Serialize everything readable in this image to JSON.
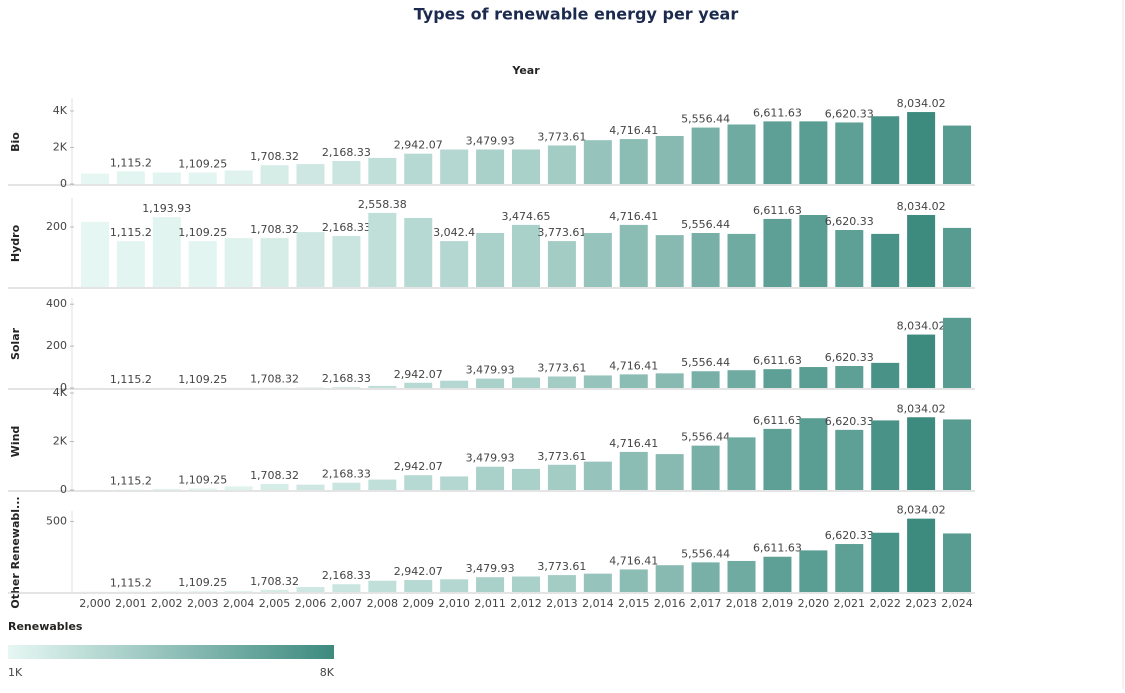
{
  "chart_data": {
    "type": "bar",
    "title": "Types of renewable energy per year",
    "x_label": "Year",
    "categories": [
      "2,000",
      "2,001",
      "2,002",
      "2,003",
      "2,004",
      "2,005",
      "2,006",
      "2,007",
      "2,008",
      "2,009",
      "2,010",
      "2,011",
      "2,012",
      "2,013",
      "2,014",
      "2,015",
      "2,016",
      "2,017",
      "2,018",
      "2,019",
      "2,020",
      "2,021",
      "2,022",
      "2,023",
      "2,024"
    ],
    "renewables": {
      "name": "Renewables",
      "values": [
        1000,
        1115.2,
        1193.93,
        1109.25,
        1300,
        1708.32,
        2000,
        2168.33,
        2558.38,
        2942.07,
        3042.4,
        3479.93,
        3474.65,
        3773.61,
        4300,
        4716.41,
        4900,
        5556.44,
        5900,
        6611.63,
        6800,
        6620.33,
        7500,
        8034.02,
        6900
      ]
    },
    "colorscale": {
      "min": {
        "value": 1000,
        "label": "1K"
      },
      "max": {
        "value": 8000,
        "label": "8K"
      },
      "colors": [
        "#e6f7f3",
        "#3d8a7f"
      ]
    },
    "series": [
      {
        "name": "Bio",
        "ylim": [
          0,
          4600
        ],
        "yticks": [
          0,
          {
            "value": 2000,
            "label": "2K"
          },
          {
            "value": 4000,
            "label": "4K"
          }
        ],
        "values": [
          570,
          690,
          630,
          630,
          740,
          1030,
          1090,
          1260,
          1430,
          1660,
          1890,
          1890,
          1890,
          2110,
          2400,
          2460,
          2630,
          3090,
          3260,
          3430,
          3430,
          3370,
          3710,
          3940,
          3200
        ],
        "total_labels": [
          null,
          "1,115.2",
          null,
          "1,109.25",
          null,
          "1,708.32",
          null,
          "2,168.33",
          null,
          "2,942.07",
          null,
          "3,479.93",
          null,
          "3,773.61",
          null,
          "4,716.41",
          null,
          "5,556.44",
          null,
          "6,611.63",
          null,
          "6,620.33",
          null,
          "8,034.02",
          null
        ]
      },
      {
        "name": "Hydro",
        "ylim": [
          0,
          290
        ],
        "yticks": [
          200
        ],
        "values": [
          217,
          153,
          233,
          153,
          163,
          163,
          183,
          170,
          247,
          230,
          153,
          180,
          207,
          153,
          180,
          207,
          173,
          180,
          177,
          227,
          240,
          190,
          177,
          240,
          197
        ],
        "total_labels": [
          null,
          "1,115.2",
          "1,193.93",
          "1,109.25",
          null,
          "1,708.32",
          null,
          "2,168.33",
          "2,558.38",
          null,
          "3,042.4",
          null,
          "3,474.65",
          "3,773.61",
          null,
          "4,716.41",
          null,
          "5,556.44",
          null,
          "6,611.63",
          null,
          "6,620.33",
          null,
          "8,034.02",
          null
        ]
      },
      {
        "name": "Solar",
        "ylim": [
          0,
          420
        ],
        "yticks": [
          0,
          200,
          400
        ],
        "values": [
          0.5,
          0.6,
          0.8,
          1,
          1.2,
          1.5,
          2,
          4,
          10,
          25,
          35,
          45,
          50,
          55,
          60,
          65,
          70,
          80,
          85,
          90,
          100,
          105,
          120,
          255,
          335
        ],
        "total_labels": [
          null,
          "1,115.2",
          null,
          "1,109.25",
          null,
          "1,708.32",
          null,
          "2,168.33",
          null,
          "2,942.07",
          null,
          "3,479.93",
          null,
          "3,773.61",
          null,
          "4,716.41",
          null,
          "5,556.44",
          null,
          "6,611.63",
          null,
          "6,620.33",
          null,
          "8,034.02",
          null
        ]
      },
      {
        "name": "Wind",
        "ylim": [
          0,
          4000
        ],
        "yticks": [
          0,
          {
            "value": 2000,
            "label": "2K"
          },
          {
            "value": 4000,
            "label": "4K"
          }
        ],
        "values": [
          10,
          20,
          40,
          60,
          150,
          250,
          220,
          300,
          430,
          610,
          560,
          960,
          870,
          1040,
          1170,
          1570,
          1480,
          1830,
          2170,
          2520,
          2960,
          2480,
          2870,
          3000,
          2910
        ],
        "total_labels": [
          null,
          "1,115.2",
          null,
          "1,109.25",
          null,
          "1,708.32",
          null,
          "2,168.33",
          null,
          "2,942.07",
          null,
          "3,479.93",
          null,
          "3,773.61",
          null,
          "4,716.41",
          null,
          "5,556.44",
          null,
          "6,611.63",
          null,
          "6,620.33",
          null,
          "8,034.02",
          null
        ]
      },
      {
        "name": "Other Renewabl...",
        "ylim": [
          0,
          560
        ],
        "yticks": [
          500
        ],
        "values": [
          2,
          3,
          4,
          6,
          8,
          15,
          35,
          55,
          80,
          85,
          90,
          105,
          110,
          120,
          130,
          160,
          190,
          210,
          220,
          250,
          295,
          340,
          420,
          520,
          415
        ],
        "total_labels": [
          null,
          "1,115.2",
          null,
          "1,109.25",
          null,
          "1,708.32",
          null,
          "2,168.33",
          null,
          "2,942.07",
          null,
          "3,479.93",
          null,
          "3,773.61",
          null,
          "4,716.41",
          null,
          "5,556.44",
          null,
          "6,611.63",
          null,
          "6,620.33",
          null,
          "8,034.02",
          null
        ]
      }
    ]
  }
}
